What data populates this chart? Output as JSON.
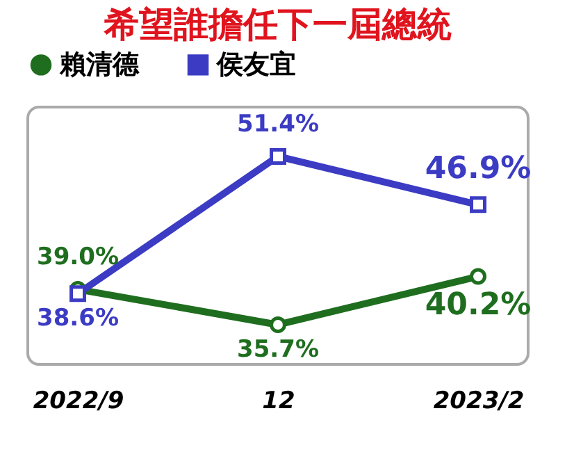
{
  "chart_data": {
    "type": "line",
    "title": "希望誰擔任下一屆總統",
    "categories": [
      "2022/9",
      "12",
      "2023/2"
    ],
    "series": [
      {
        "name": "賴清德",
        "color": "#1f6e1f",
        "marker": "circle",
        "values": [
          39.0,
          35.7,
          40.2
        ],
        "value_labels": [
          "39.0%",
          "35.7%",
          "40.2%"
        ]
      },
      {
        "name": "侯友宜",
        "color": "#3b3bc4",
        "marker": "square",
        "values": [
          38.6,
          51.4,
          46.9
        ],
        "value_labels": [
          "38.6%",
          "51.4%",
          "46.9%"
        ]
      }
    ],
    "legend": "top",
    "grid": false
  }
}
